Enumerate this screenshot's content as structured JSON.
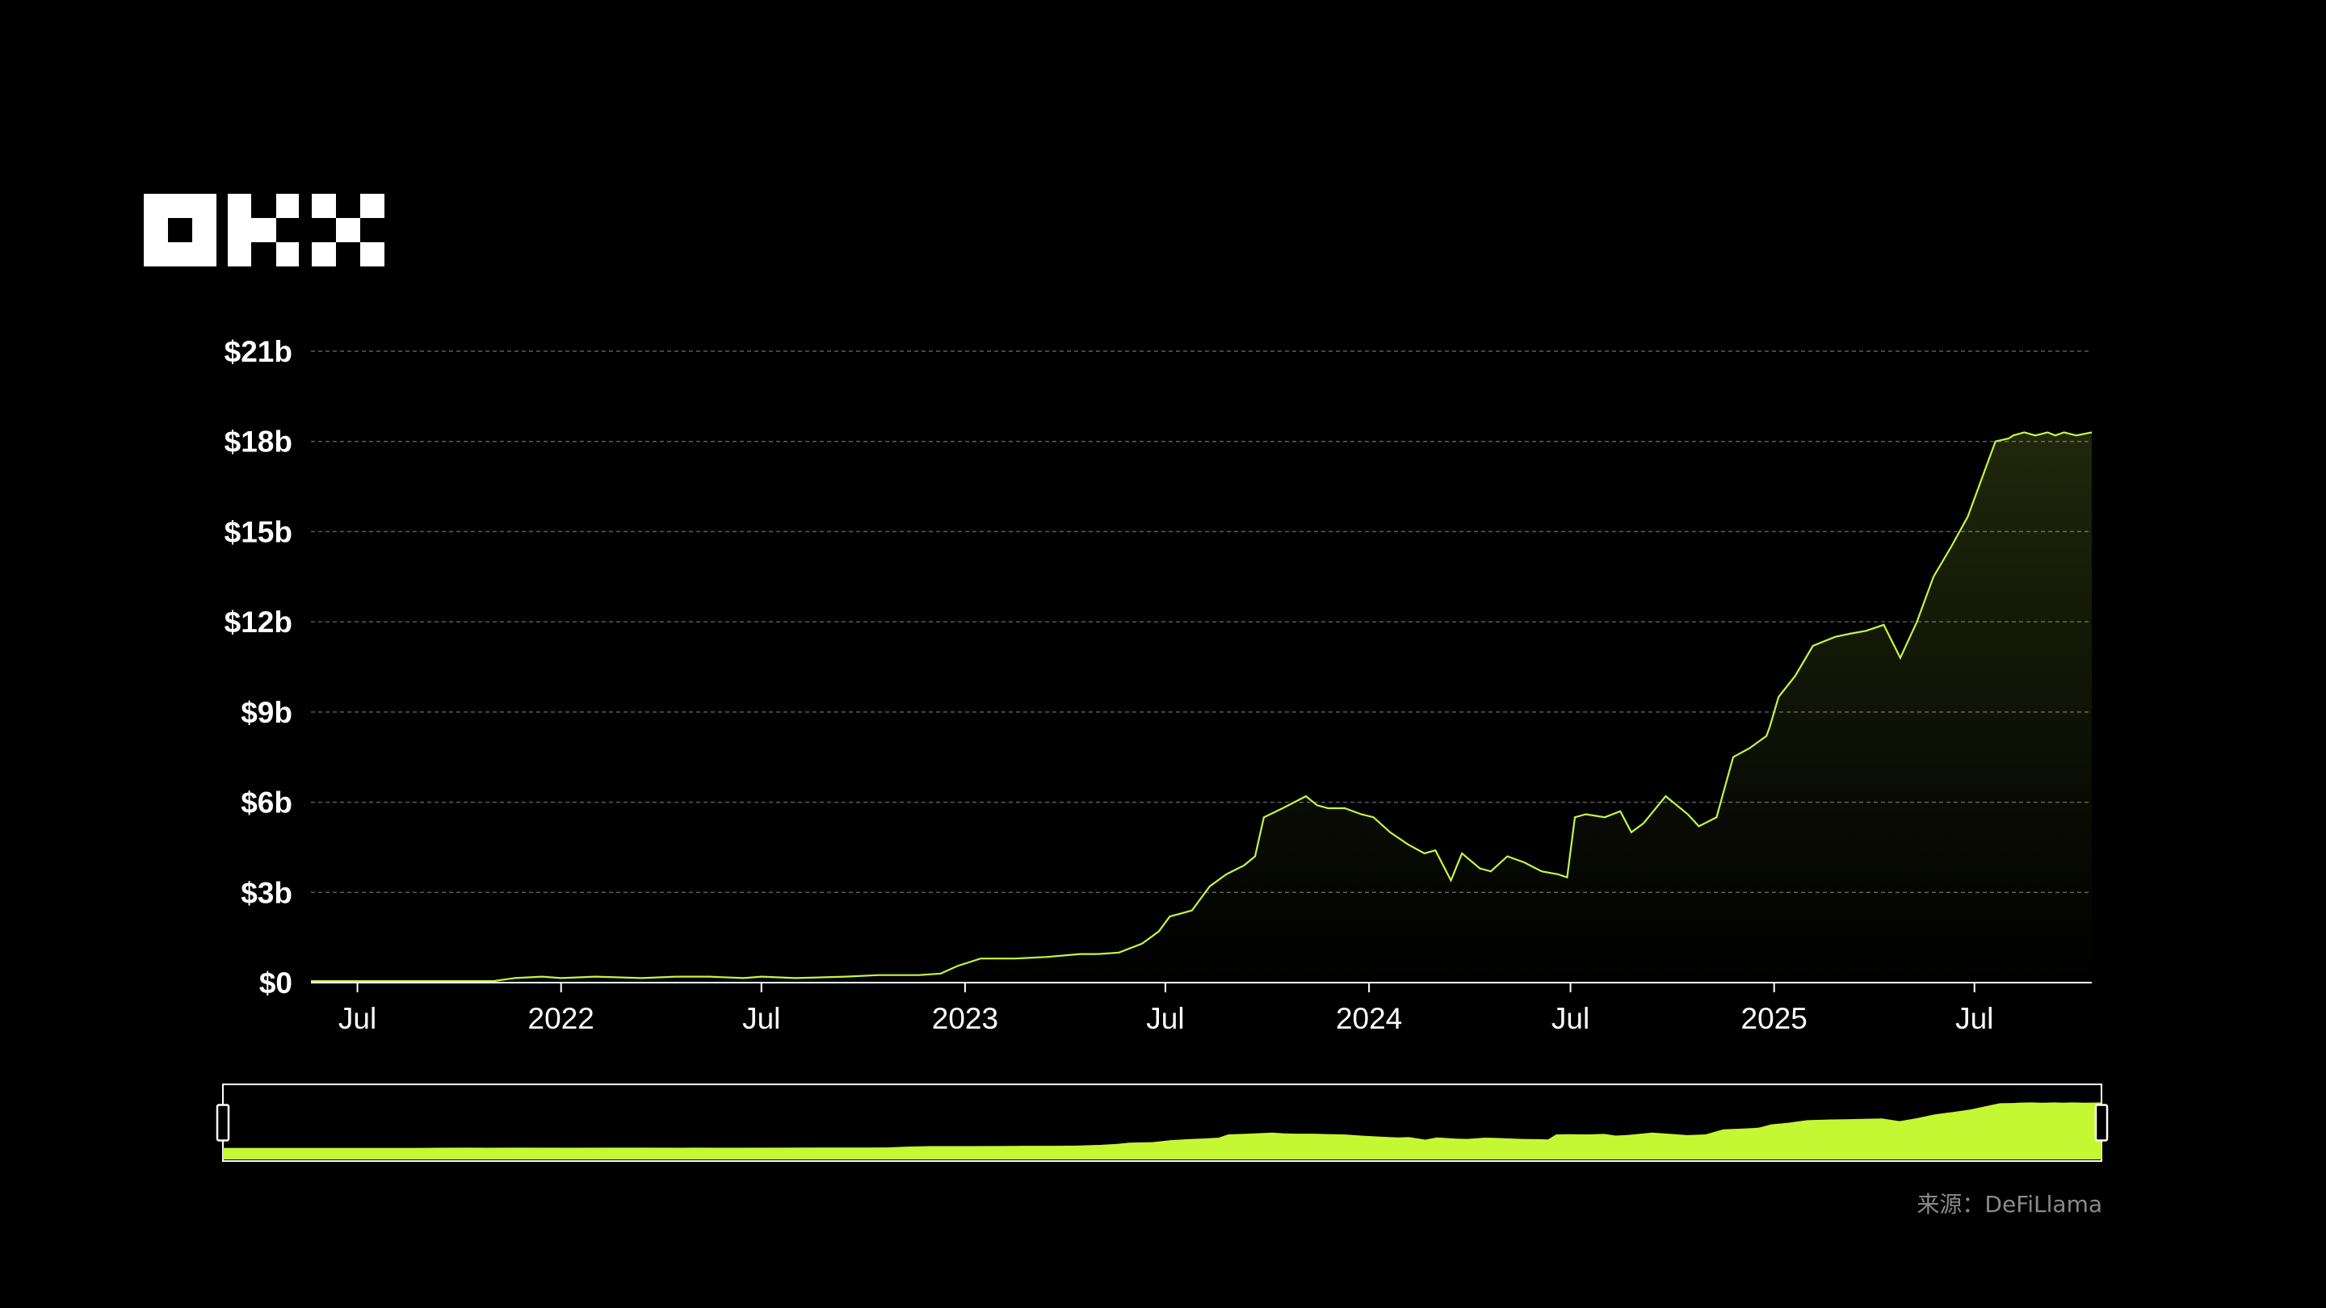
{
  "brand": {
    "logo_text": "OKX"
  },
  "source_label": "来源：DeFiLlama",
  "colors": {
    "background": "#000000",
    "line": "#c8f542",
    "navigator_fill": "#c4f833",
    "grid": "#5a5a5a"
  },
  "chart_data": {
    "type": "area",
    "title": "",
    "xlabel": "",
    "ylabel": "",
    "ylim": [
      0,
      21
    ],
    "y_unit": "billion USD",
    "yticks": [
      {
        "value": 0,
        "label": "$0"
      },
      {
        "value": 3,
        "label": "$3b"
      },
      {
        "value": 6,
        "label": "$6b"
      },
      {
        "value": 9,
        "label": "$9b"
      },
      {
        "value": 12,
        "label": "$12b"
      },
      {
        "value": 15,
        "label": "$15b"
      },
      {
        "value": 18,
        "label": "$18b"
      },
      {
        "value": 21,
        "label": "$21b"
      }
    ],
    "xlim": [
      "2021-05-20",
      "2025-10-15"
    ],
    "xticks": [
      {
        "date": "2021-07-01",
        "label": "Jul"
      },
      {
        "date": "2022-01-01",
        "label": "2022"
      },
      {
        "date": "2022-07-01",
        "label": "Jul"
      },
      {
        "date": "2023-01-01",
        "label": "2023"
      },
      {
        "date": "2023-07-01",
        "label": "Jul"
      },
      {
        "date": "2024-01-01",
        "label": "2024"
      },
      {
        "date": "2024-07-01",
        "label": "Jul"
      },
      {
        "date": "2025-01-01",
        "label": "2025"
      },
      {
        "date": "2025-07-01",
        "label": "Jul"
      }
    ],
    "grid": true,
    "legend": "none",
    "series": [
      {
        "x": [
          "2021-05-20",
          "2021-07-01",
          "2021-09-01",
          "2021-11-01",
          "2021-11-20",
          "2021-12-15",
          "2022-01-01",
          "2022-02-01",
          "2022-03-15",
          "2022-04-15",
          "2022-05-15",
          "2022-06-15",
          "2022-07-01",
          "2022-08-01",
          "2022-09-15",
          "2022-10-15",
          "2022-11-20",
          "2022-12-10",
          "2022-12-25",
          "2023-01-15",
          "2023-02-15",
          "2023-03-15",
          "2023-04-15",
          "2023-05-01",
          "2023-05-20",
          "2023-06-10",
          "2023-06-25",
          "2023-07-05",
          "2023-07-15",
          "2023-07-25",
          "2023-08-10",
          "2023-08-25",
          "2023-09-10",
          "2023-09-20",
          "2023-09-28",
          "2023-10-15",
          "2023-11-05",
          "2023-11-15",
          "2023-11-25",
          "2023-12-10",
          "2023-12-25",
          "2024-01-05",
          "2024-01-20",
          "2024-02-05",
          "2024-02-20",
          "2024-03-01",
          "2024-03-15",
          "2024-03-25",
          "2024-04-10",
          "2024-04-20",
          "2024-05-05",
          "2024-05-20",
          "2024-06-05",
          "2024-06-20",
          "2024-06-28",
          "2024-07-05",
          "2024-07-15",
          "2024-08-01",
          "2024-08-15",
          "2024-08-25",
          "2024-09-05",
          "2024-09-25",
          "2024-10-15",
          "2024-10-25",
          "2024-11-10",
          "2024-11-25",
          "2024-12-10",
          "2024-12-25",
          "2024-12-28",
          "2025-01-05",
          "2025-01-20",
          "2025-02-05",
          "2025-02-25",
          "2025-03-10",
          "2025-03-25",
          "2025-04-10",
          "2025-04-25",
          "2025-05-10",
          "2025-05-25",
          "2025-06-10",
          "2025-06-25",
          "2025-07-05",
          "2025-07-15",
          "2025-07-20",
          "2025-08-01",
          "2025-08-05",
          "2025-08-15",
          "2025-08-25",
          "2025-09-05",
          "2025-09-12",
          "2025-09-20",
          "2025-10-01",
          "2025-10-15"
        ],
        "y": [
          0.05,
          0.05,
          0.05,
          0.05,
          0.15,
          0.2,
          0.15,
          0.2,
          0.15,
          0.2,
          0.2,
          0.15,
          0.2,
          0.15,
          0.2,
          0.25,
          0.25,
          0.3,
          0.55,
          0.8,
          0.8,
          0.85,
          0.95,
          0.95,
          1.0,
          1.3,
          1.7,
          2.2,
          2.3,
          2.4,
          3.2,
          3.6,
          3.9,
          4.2,
          5.5,
          5.8,
          6.2,
          5.9,
          5.8,
          5.8,
          5.6,
          5.5,
          5.0,
          4.6,
          4.3,
          4.4,
          3.4,
          4.3,
          3.8,
          3.7,
          4.2,
          4.0,
          3.7,
          3.6,
          3.5,
          5.5,
          5.6,
          5.5,
          5.7,
          5.0,
          5.3,
          6.2,
          5.6,
          5.2,
          5.5,
          7.5,
          7.8,
          8.2,
          8.5,
          9.5,
          10.2,
          11.2,
          11.5,
          11.6,
          11.7,
          11.9,
          10.8,
          12.0,
          13.5,
          14.5,
          15.5,
          16.5,
          17.5,
          18.0,
          18.1,
          18.2,
          18.3,
          18.2,
          18.3,
          18.2,
          18.3,
          18.2,
          18.3
        ]
      }
    ]
  }
}
